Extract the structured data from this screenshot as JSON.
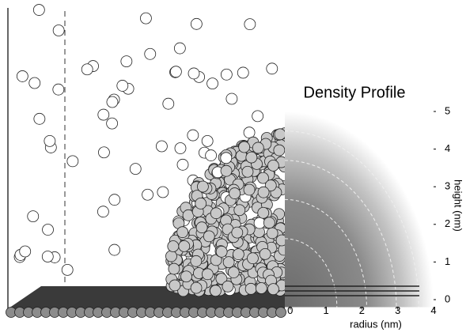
{
  "chart_data": {
    "type": "density",
    "title": "Density Profile",
    "x_label": "radius (nm)",
    "y_label": "height (nm)",
    "xlim": [
      -0.15,
      4
    ],
    "xticks": [
      0,
      1,
      2,
      3,
      4
    ],
    "ylim": [
      -0.2,
      5
    ],
    "yticks": [
      0,
      1,
      2,
      3,
      4,
      5
    ]
  }
}
